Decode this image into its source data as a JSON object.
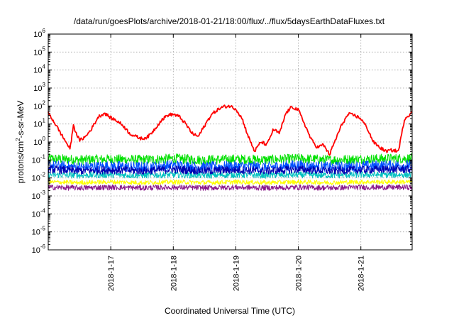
{
  "chart_data": {
    "type": "line",
    "title": "/data/run/goesPlots/archive/2018-01-21/18:00/flux/../flux/5daysEarthDataFluxes.txt",
    "xlabel": "Coordinated Universal Time (UTC)",
    "ylabel": {
      "prefix": "protons/cm",
      "sup": "2",
      "suffix": "-s-sr-MeV"
    },
    "yscale": "log",
    "ylim": [
      1e-06,
      1000000.0
    ],
    "xlim": [
      16.0,
      21.82
    ],
    "x_unit": "day of January 2018",
    "grid": true,
    "yticks": [
      {
        "base": "10",
        "exp": "6"
      },
      {
        "base": "10",
        "exp": "5"
      },
      {
        "base": "10",
        "exp": "4"
      },
      {
        "base": "10",
        "exp": "3"
      },
      {
        "base": "10",
        "exp": "2"
      },
      {
        "base": "10",
        "exp": "1"
      },
      {
        "base": "10",
        "exp": "0"
      },
      {
        "base": "10",
        "exp": "-1"
      },
      {
        "base": "10",
        "exp": "-2"
      },
      {
        "base": "10",
        "exp": "-3"
      },
      {
        "base": "10",
        "exp": "-4"
      },
      {
        "base": "10",
        "exp": "-5"
      },
      {
        "base": "10",
        "exp": "-6"
      }
    ],
    "xticks": [
      {
        "x": 17,
        "label": "2018-1-17"
      },
      {
        "x": 18,
        "label": "2018-1-18"
      },
      {
        "x": 19,
        "label": "2018-1-19"
      },
      {
        "x": 20,
        "label": "2018-1-20"
      },
      {
        "x": 21,
        "label": "2018-1-21"
      }
    ],
    "series": [
      {
        "color": "#ff0000",
        "x": [
          16.0,
          16.1,
          16.2,
          16.3,
          16.35,
          16.4,
          16.5,
          16.6,
          16.7,
          16.8,
          16.9,
          17.0,
          17.1,
          17.2,
          17.3,
          17.4,
          17.5,
          17.6,
          17.7,
          17.8,
          17.9,
          18.0,
          18.1,
          18.2,
          18.3,
          18.4,
          18.5,
          18.6,
          18.7,
          18.8,
          18.9,
          19.0,
          19.1,
          19.2,
          19.3,
          19.4,
          19.5,
          19.6,
          19.7,
          19.8,
          19.9,
          20.0,
          20.1,
          20.2,
          20.3,
          20.4,
          20.5,
          20.6,
          20.7,
          20.8,
          20.9,
          21.0,
          21.1,
          21.2,
          21.3,
          21.4,
          21.5,
          21.6,
          21.7,
          21.82
        ],
        "y": [
          40,
          12,
          3,
          0.8,
          0.4,
          8,
          1.2,
          2,
          6,
          25,
          40,
          22,
          15,
          8,
          3,
          2,
          1.5,
          2,
          5,
          15,
          30,
          35,
          25,
          10,
          3,
          2,
          8,
          30,
          60,
          90,
          100,
          70,
          20,
          2,
          0.3,
          1,
          0.7,
          5,
          3,
          40,
          90,
          60,
          10,
          1.5,
          0.5,
          0.7,
          0.2,
          1.5,
          10,
          35,
          30,
          20,
          6,
          1,
          0.5,
          0.3,
          0.35,
          0.3,
          20,
          45
        ]
      },
      {
        "color": "#00e000",
        "x": [
          16.0,
          16.5,
          17.0,
          17.5,
          18.0,
          18.5,
          19.0,
          19.5,
          20.0,
          20.5,
          21.0,
          21.5,
          21.82
        ],
        "y": [
          0.12,
          0.1,
          0.11,
          0.1,
          0.12,
          0.1,
          0.11,
          0.1,
          0.12,
          0.1,
          0.11,
          0.12,
          0.12
        ]
      },
      {
        "color": "#0050ff",
        "x": [
          16.0,
          16.5,
          17.0,
          17.5,
          18.0,
          18.5,
          19.0,
          19.5,
          20.0,
          20.5,
          21.0,
          21.5,
          21.82
        ],
        "y": [
          0.05,
          0.04,
          0.045,
          0.04,
          0.05,
          0.04,
          0.045,
          0.04,
          0.05,
          0.04,
          0.045,
          0.05,
          0.05
        ]
      },
      {
        "color": "#0000b0",
        "x": [
          16.0,
          16.5,
          17.0,
          17.5,
          18.0,
          18.5,
          19.0,
          19.5,
          20.0,
          20.5,
          21.0,
          21.5,
          21.82
        ],
        "y": [
          0.03,
          0.025,
          0.028,
          0.025,
          0.03,
          0.025,
          0.028,
          0.025,
          0.03,
          0.025,
          0.028,
          0.03,
          0.03
        ]
      },
      {
        "color": "#00c0c0",
        "x": [
          16.0,
          16.5,
          17.0,
          17.5,
          18.0,
          18.5,
          19.0,
          19.5,
          20.0,
          20.5,
          21.0,
          21.5,
          21.82
        ],
        "y": [
          0.015,
          0.014,
          0.015,
          0.014,
          0.015,
          0.014,
          0.015,
          0.014,
          0.015,
          0.014,
          0.015,
          0.015,
          0.015
        ]
      },
      {
        "color": "#ffff00",
        "x": [
          16.0,
          16.5,
          17.0,
          17.5,
          18.0,
          18.5,
          19.0,
          19.5,
          20.0,
          20.5,
          21.0,
          21.5,
          21.82
        ],
        "y": [
          0.006,
          0.0055,
          0.006,
          0.0055,
          0.006,
          0.0055,
          0.006,
          0.0055,
          0.006,
          0.0055,
          0.006,
          0.006,
          0.006
        ]
      },
      {
        "color": "#8b1a8b",
        "x": [
          16.0,
          16.5,
          17.0,
          17.5,
          18.0,
          18.5,
          19.0,
          19.5,
          20.0,
          20.5,
          21.0,
          21.5,
          21.82
        ],
        "y": [
          0.003,
          0.0028,
          0.003,
          0.0028,
          0.003,
          0.0028,
          0.003,
          0.0028,
          0.003,
          0.0028,
          0.003,
          0.003,
          0.003
        ]
      }
    ]
  }
}
